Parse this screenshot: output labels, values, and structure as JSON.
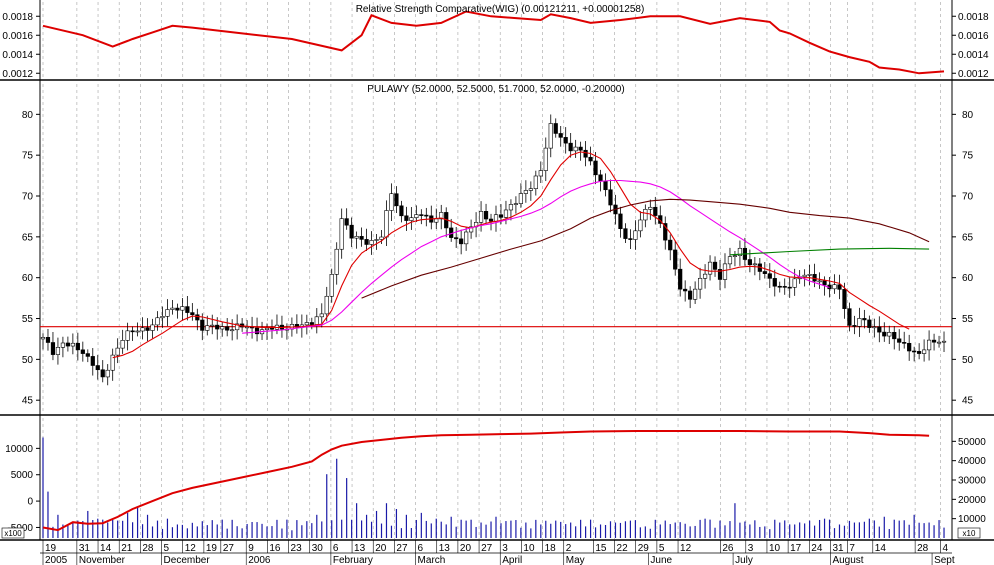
{
  "chart_data": [
    {
      "type": "line",
      "title": "Relative Strength Comparative(WIG) (0.00121211, +0.00001258)",
      "ylim": [
        0.00115,
        0.00195
      ],
      "y_ticks": [
        "0.0018",
        "0.0016",
        "0.0014",
        "0.0012"
      ],
      "y_tick_values": [
        0.0018,
        0.0016,
        0.0014,
        0.0012
      ],
      "series": [
        {
          "color": "#dd0000",
          "x": [
            0,
            8,
            14,
            18,
            22,
            26,
            30,
            40,
            50,
            60,
            64,
            66,
            70,
            75,
            80,
            85,
            90,
            95,
            100,
            102,
            106,
            110,
            116,
            122,
            128,
            134,
            140,
            146,
            148,
            150,
            154,
            158,
            162,
            166,
            168,
            172,
            176,
            181
          ],
          "values": [
            0.0017,
            0.0016,
            0.00148,
            0.00156,
            0.00163,
            0.0017,
            0.00168,
            0.00162,
            0.00156,
            0.00144,
            0.0016,
            0.00181,
            0.00173,
            0.0017,
            0.00173,
            0.00185,
            0.0018,
            0.00178,
            0.00176,
            0.00182,
            0.00178,
            0.00173,
            0.00176,
            0.0018,
            0.0018,
            0.00172,
            0.00178,
            0.00174,
            0.00165,
            0.00162,
            0.00152,
            0.00143,
            0.00137,
            0.00132,
            0.00126,
            0.00124,
            0.0012,
            0.00122
          ]
        }
      ]
    },
    {
      "type": "candlestick",
      "title": "PULAWY (52.0000, 52.5000, 51.7000, 52.0000, -0.20000)",
      "ylim": [
        43.8,
        82
      ],
      "y_ticks": [
        "80",
        "75",
        "70",
        "65",
        "60",
        "55",
        "50",
        "45"
      ],
      "y_tick_values": [
        80,
        75,
        70,
        65,
        60,
        55,
        50,
        45
      ],
      "horizontal_line": 54,
      "close": {
        "x": [
          0,
          2,
          4,
          6,
          8,
          10,
          12,
          14,
          16,
          18,
          20,
          22,
          24,
          26,
          28,
          30,
          32,
          36,
          40,
          44,
          48,
          52,
          56,
          58,
          60,
          62,
          64,
          66,
          68,
          70,
          72,
          74,
          76,
          78,
          80,
          82,
          84,
          86,
          88,
          90,
          92,
          94,
          96,
          98,
          100,
          102,
          104,
          106,
          108,
          110,
          112,
          114,
          116,
          118,
          120,
          122,
          124,
          126,
          128,
          130,
          132,
          134,
          136,
          138,
          140,
          142,
          144,
          146,
          148,
          150,
          152,
          154,
          156,
          158,
          160,
          162,
          164,
          166,
          168,
          170,
          172,
          174,
          176,
          178,
          180,
          181
        ],
        "values": [
          52.5,
          51.0,
          52.0,
          51.5,
          51.0,
          49.5,
          47.5,
          50.5,
          52.5,
          53.5,
          53.8,
          54.0,
          55.5,
          56.5,
          56.0,
          55.5,
          54.0,
          53.8,
          54.0,
          53.5,
          54.0,
          54.0,
          55.5,
          60.0,
          67.5,
          65.0,
          64.5,
          64.5,
          65.0,
          70.5,
          67.5,
          67.0,
          68.0,
          67.0,
          67.5,
          65.0,
          64.5,
          66.0,
          68.0,
          67.0,
          67.5,
          69.0,
          70.0,
          71.0,
          73.5,
          78.5,
          77.0,
          76.0,
          75.5,
          74.0,
          72.0,
          69.0,
          66.0,
          64.5,
          67.0,
          69.0,
          66.5,
          63.0,
          59.0,
          57.5,
          59.5,
          62.0,
          60.0,
          62.5,
          63.5,
          61.5,
          61.0,
          60.0,
          58.5,
          59.0,
          60.5,
          60.0,
          59.5,
          59.0,
          58.5,
          54.0,
          55.0,
          54.0,
          53.5,
          53.0,
          52.0,
          51.5,
          50.5,
          52.0,
          52.5,
          52.0
        ],
        "ma_short": [
          null,
          null,
          null,
          null,
          null,
          null,
          null,
          50.2,
          50.5,
          51.0,
          51.8,
          52.5,
          53.2,
          54.0,
          54.8,
          55.3,
          55.2,
          54.6,
          54.1,
          53.9,
          53.9,
          54.0,
          54.3,
          56.0,
          59.0,
          61.5,
          63.0,
          63.8,
          64.5,
          65.5,
          66.2,
          66.8,
          67.1,
          67.2,
          67.3,
          66.9,
          66.3,
          66.1,
          66.5,
          66.8,
          67.0,
          67.4,
          68.0,
          68.8,
          70.0,
          72.0,
          73.8,
          75.0,
          75.4,
          75.2,
          74.6,
          73.0,
          71.0,
          69.0,
          68.0,
          67.8,
          67.0,
          65.5,
          63.5,
          61.8,
          61.0,
          60.8,
          60.8,
          61.0,
          61.3,
          61.4,
          61.3,
          60.9,
          60.4,
          60.1,
          60.0,
          60.0,
          59.8,
          59.6,
          59.3,
          58.2,
          57.4,
          56.6,
          55.9,
          55.1,
          54.3,
          53.7,
          null,
          null,
          null,
          null
        ],
        "ma_mid": [
          null,
          null,
          null,
          null,
          null,
          null,
          null,
          null,
          null,
          null,
          null,
          null,
          null,
          null,
          null,
          null,
          null,
          null,
          53.2,
          53.4,
          53.6,
          53.9,
          54.2,
          54.8,
          55.8,
          57.0,
          58.2,
          59.3,
          60.3,
          61.3,
          62.2,
          63.0,
          63.8,
          64.4,
          65.0,
          65.4,
          65.8,
          66.1,
          66.4,
          66.6,
          66.9,
          67.2,
          67.5,
          67.9,
          68.4,
          69.1,
          69.9,
          70.6,
          71.1,
          71.5,
          71.8,
          71.9,
          71.9,
          71.8,
          71.7,
          71.5,
          71.1,
          70.5,
          69.7,
          68.8,
          68.0,
          67.2,
          66.4,
          65.6,
          64.9,
          64.1,
          63.3,
          62.5,
          61.6,
          60.8,
          60.1,
          59.6,
          59.2,
          58.8,
          null,
          null,
          null,
          null,
          null,
          null,
          null,
          null,
          null,
          null,
          null,
          null
        ],
        "ma_long_x": [
          64,
          70,
          76,
          82,
          88,
          94,
          100,
          106,
          110,
          114,
          118,
          122,
          126,
          130,
          134,
          140,
          146,
          150,
          156,
          162,
          168,
          174,
          178
        ],
        "ma_long": [
          57.5,
          59.0,
          60.3,
          61.3,
          62.4,
          63.5,
          64.5,
          66.0,
          67.3,
          68.2,
          68.9,
          69.4,
          69.6,
          69.5,
          69.3,
          69.0,
          68.5,
          68.0,
          67.6,
          67.3,
          66.6,
          65.5,
          64.4
        ],
        "flat_green_x": [
          138,
          150,
          160,
          170,
          178
        ],
        "flat_green": [
          62.8,
          63.2,
          63.5,
          63.6,
          63.5
        ]
      }
    },
    {
      "type": "bar",
      "title": "",
      "left_ylim": [
        -7000,
        15000
      ],
      "left_ticks": [
        "10000",
        "5000",
        "0",
        "-5000"
      ],
      "left_tick_values": [
        10000,
        5000,
        0,
        -5000
      ],
      "right_ylim": [
        0,
        60000
      ],
      "right_ticks": [
        "50000",
        "40000",
        "30000",
        "20000",
        "10000"
      ],
      "right_tick_values": [
        50000,
        40000,
        30000,
        20000,
        10000
      ],
      "scale_label_left": "x100",
      "scale_label_right": "x10",
      "volume": {
        "x": [
          0,
          1,
          3,
          5,
          7,
          9,
          11,
          13,
          15,
          17,
          19,
          21,
          23,
          25,
          27,
          29,
          31,
          35,
          40,
          45,
          50,
          55,
          57,
          59,
          61,
          63,
          65,
          67,
          69,
          71,
          73,
          76,
          79,
          82,
          85,
          88,
          91,
          94,
          97,
          100,
          103,
          106,
          109,
          112,
          115,
          118,
          121,
          124,
          127,
          130,
          133,
          136,
          139,
          142,
          145,
          148,
          151,
          154,
          157,
          160,
          163,
          166,
          169,
          172,
          175,
          178
        ],
        "values": [
          5200,
          2400,
          1200,
          700,
          900,
          1400,
          1000,
          800,
          900,
          1300,
          1600,
          1200,
          900,
          1000,
          700,
          500,
          600,
          700,
          500,
          600,
          400,
          1200,
          3300,
          4100,
          3100,
          1800,
          1200,
          1400,
          1800,
          1500,
          1200,
          1300,
          1000,
          1100,
          900,
          800,
          1100,
          900,
          800,
          700,
          900,
          800,
          600,
          700,
          800,
          900,
          600,
          700,
          800,
          600,
          1000,
          900,
          1800,
          700,
          600,
          800,
          700,
          900,
          1000,
          700,
          800,
          1000,
          1100,
          900,
          1200,
          800
        ]
      },
      "obv": {
        "x": [
          0,
          3,
          6,
          9,
          12,
          15,
          18,
          22,
          26,
          30,
          35,
          40,
          45,
          50,
          54,
          56,
          58,
          60,
          64,
          68,
          72,
          76,
          80,
          86,
          92,
          98,
          104,
          110,
          120,
          130,
          140,
          150,
          160,
          166,
          170,
          176,
          178
        ],
        "values": [
          -5000,
          -5500,
          -4000,
          -4300,
          -4200,
          -3000,
          -1500,
          0,
          1500,
          2500,
          3500,
          4500,
          5500,
          6500,
          7500,
          8800,
          9800,
          10500,
          11200,
          11600,
          12000,
          12300,
          12500,
          12600,
          12700,
          12800,
          13000,
          13200,
          13300,
          13300,
          13300,
          13200,
          13200,
          12900,
          12600,
          12500,
          12400
        ]
      }
    }
  ],
  "x_axis": {
    "day_labels": [
      "19",
      "31",
      "14",
      "21",
      "28",
      "5",
      "12",
      "19",
      "27",
      "9",
      "16",
      "23",
      "30",
      "6",
      "13",
      "20",
      "27",
      "6",
      "13",
      "20",
      "27",
      "3",
      "10",
      "18",
      "2",
      "15",
      "22",
      "29",
      "5",
      "12",
      "26",
      "3",
      "10",
      "17",
      "24",
      "31",
      "7",
      "14",
      "28",
      "4"
    ],
    "month_labels": [
      "2005",
      "November",
      "December",
      "2006",
      "February",
      "March",
      "April",
      "May",
      "June",
      "July",
      "August",
      "Sept"
    ]
  }
}
